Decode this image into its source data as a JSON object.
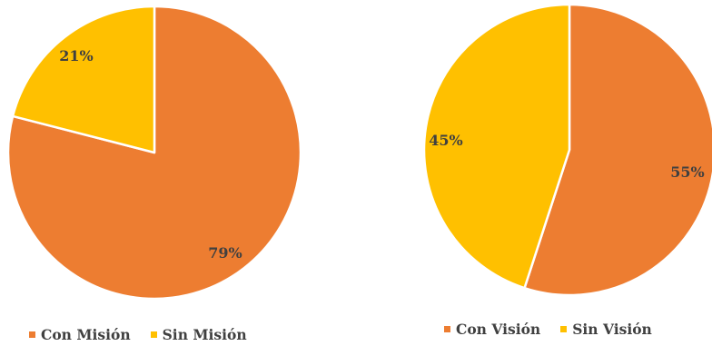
{
  "colors": {
    "orange": "#ED7D31",
    "yellow": "#FFC000"
  },
  "chart_data": [
    {
      "type": "pie",
      "title": "",
      "labels": [
        "Con Misión",
        "Sin Misión"
      ],
      "values": [
        79,
        21
      ],
      "data_labels": [
        "79%",
        "21%"
      ],
      "colors": [
        "#ED7D31",
        "#FFC000"
      ],
      "legend": "bottom"
    },
    {
      "type": "pie",
      "title": "",
      "labels": [
        "Con Visión",
        "Sin Visión"
      ],
      "values": [
        55,
        45
      ],
      "data_labels": [
        "55%",
        "45%"
      ],
      "colors": [
        "#ED7D31",
        "#FFC000"
      ],
      "legend": "bottom"
    }
  ]
}
